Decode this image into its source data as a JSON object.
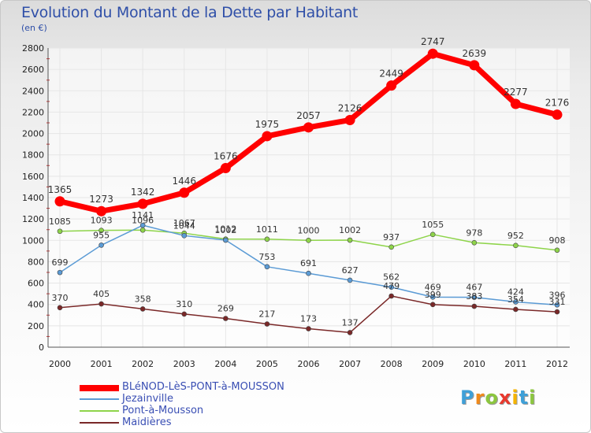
{
  "header": {
    "title": "Evolution du Montant de la Dette par Habitant",
    "unit": "(en €)"
  },
  "logo": {
    "letters": [
      "P",
      "r",
      "o",
      "x",
      "i",
      "t",
      "i"
    ],
    "colors": [
      "#3fa0d8",
      "#f08a1c",
      "#8cc63f",
      "#e8392e",
      "#f5b400",
      "#3fa0d8",
      "#8cc63f"
    ]
  },
  "chart_data": {
    "type": "line",
    "title": "Evolution du Montant de la Dette par Habitant",
    "ylabel": "(en €)",
    "xlabel": "",
    "x": [
      "2000",
      "2001",
      "2002",
      "2003",
      "2004",
      "2005",
      "2006",
      "2007",
      "2008",
      "2009",
      "2010",
      "2011",
      "2012"
    ],
    "ylim": [
      0,
      2800
    ],
    "yticks": [
      0,
      200,
      400,
      600,
      800,
      1000,
      1200,
      1400,
      1600,
      1800,
      2000,
      2200,
      2400,
      2600,
      2800
    ],
    "grid": true,
    "legend_position": "bottom-left",
    "series": [
      {
        "name": "BLéNOD-LèS-PONT-à-MOUSSON",
        "color": "#ff0000",
        "values": [
          1365,
          1273,
          1342,
          1446,
          1676,
          1975,
          2057,
          2126,
          2449,
          2747,
          2639,
          2277,
          2176
        ],
        "labels": [
          "1365",
          "1273",
          "1342",
          "1446",
          "1676",
          "1975",
          "2057",
          "2126",
          "2449",
          "2747",
          "2639",
          "2277",
          "2176"
        ]
      },
      {
        "name": "Jezainville",
        "color": "#5b9bd5",
        "values": [
          699,
          955,
          1141,
          1044,
          1002,
          753,
          691,
          627,
          562,
          469,
          467,
          424,
          396
        ],
        "labels": [
          "699",
          "955",
          "1141",
          "1044",
          "1002",
          "753",
          "691",
          "627",
          "562",
          "469",
          "467",
          "424",
          "396"
        ]
      },
      {
        "name": "Pont-à-Mousson",
        "color": "#8ed44a",
        "values": [
          1085,
          1093,
          1096,
          1067,
          1012,
          1011,
          1000,
          1002,
          937,
          1055,
          978,
          952,
          908
        ],
        "labels": [
          "1085",
          "1093",
          "1096",
          "1067",
          "1012",
          "1011",
          "1000",
          "1002",
          "937",
          "1055",
          "978",
          "952",
          "908"
        ]
      },
      {
        "name": "Maidières",
        "color": "#7a2828",
        "values": [
          370,
          405,
          358,
          310,
          269,
          217,
          173,
          137,
          479,
          399,
          383,
          354,
          331
        ],
        "labels": [
          "370",
          "405",
          "358",
          "310",
          "269",
          "217",
          "173",
          "137",
          "479",
          "399",
          "383",
          "354",
          "331"
        ]
      }
    ]
  }
}
